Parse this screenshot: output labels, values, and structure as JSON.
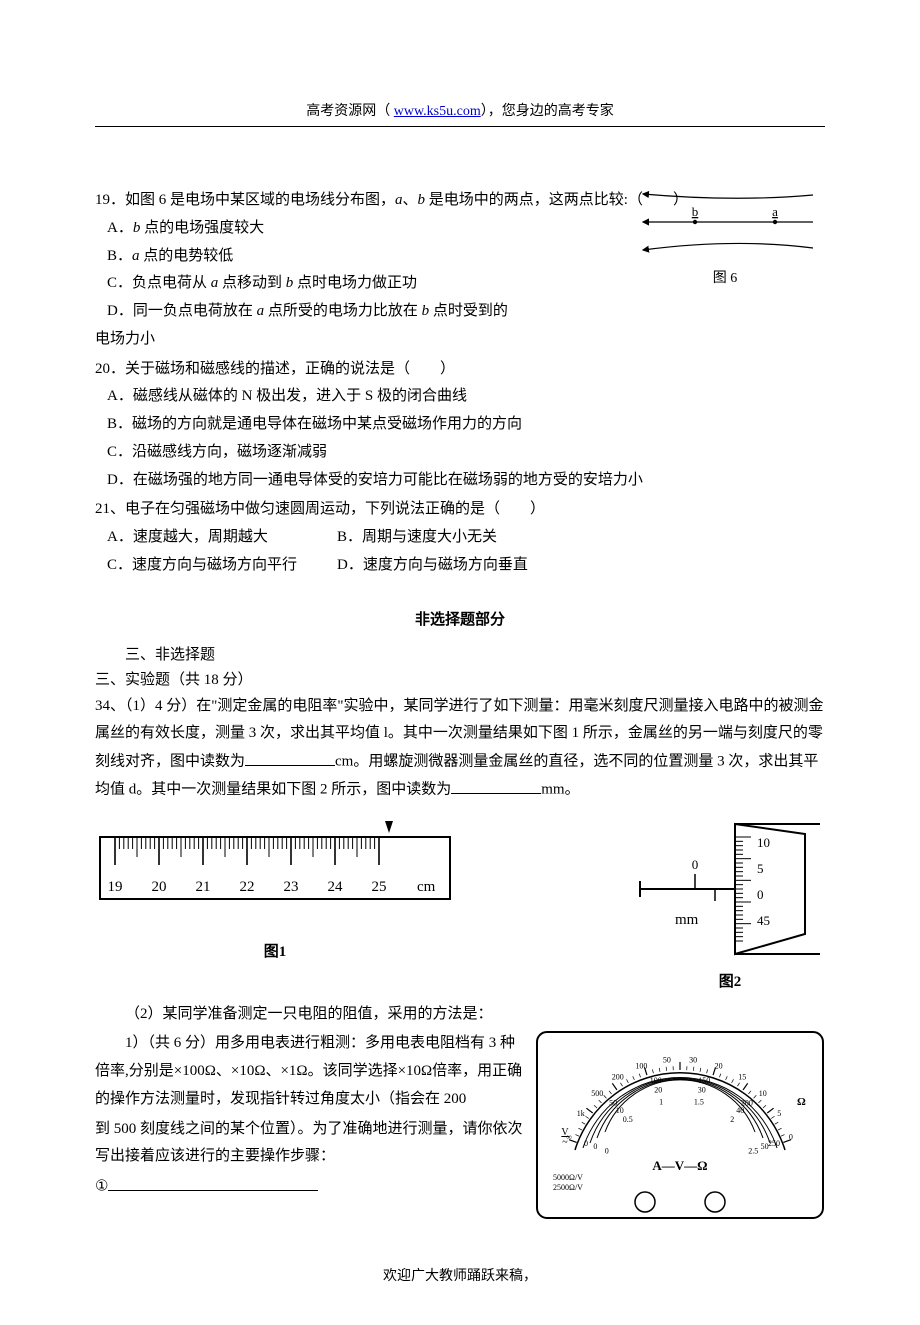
{
  "header": {
    "prefix": "高考资源网（ ",
    "link": "www.ks5u.com",
    "suffix": "），您身边的高考专家"
  },
  "q19": {
    "stem_a": "19．如图 6 是电场中某区域的电场线分布图，",
    "stem_b": "a",
    "stem_c": "、",
    "stem_d": "b",
    "stem_e": " 是电场中的两点，这两点比较:（　　）",
    "optA_pre": "A．",
    "optA_i": "b",
    "optA_post": " 点的电场强度较大",
    "optB_pre": "B．",
    "optB_i": "a",
    "optB_post": " 点的电势较低",
    "optC_pre": "C．负点电荷从 ",
    "optC_i1": "a",
    "optC_mid": " 点移动到 ",
    "optC_i2": "b",
    "optC_post": " 点时电场力做正功",
    "optD_pre": "D．同一负点电荷放在 ",
    "optD_i1": "a",
    "optD_mid": " 点所受的电场力比放在 ",
    "optD_i2": "b",
    "optD_post": " 点时受到的",
    "optD_line2": "电场力小",
    "fig_caption": "图 6",
    "fig_label_b": "b",
    "fig_label_a": "a"
  },
  "q20": {
    "stem": "20．关于磁场和磁感线的描述，正确的说法是（　　）",
    "A": "A．磁感线从磁体的 N 极出发，进入于 S 极的闭合曲线",
    "B": "B．磁场的方向就是通电导体在磁场中某点受磁场作用力的方向",
    "C": "C．沿磁感线方向，磁场逐渐减弱",
    "D": "D．在磁场强的地方同一通电导体受的安培力可能比在磁场弱的地方受的安培力小"
  },
  "q21": {
    "stem": "21、电子在匀强磁场中做匀速圆周运动，下列说法正确的是（　　）",
    "A": "A．速度越大，周期越大",
    "B": "B．周期与速度大小无关",
    "C": "C．速度方向与磁场方向平行",
    "D": "D．速度方向与磁场方向垂直"
  },
  "section2_title": "非选择题部分",
  "sec3_label": "三、非选择题",
  "sec3_exp": "三、实验题（共 18 分）",
  "q34": {
    "p1": "34、（1）4 分）在\"测定金属的电阻率\"实验中，某同学进行了如下测量：用毫米刻度尺测量接入电路中的被测金属丝的有效长度，测量 3 次，求出其平均值 l。其中一次测量结果如下图 1 所示，金属丝的另一端与刻度尺的零刻线对齐，图中读数为",
    "p1_unit": "cm。用螺旋测微器测量金属丝的直径，选不同的位置测量 3 次，求出其平均值 d。其中一次测量结果如下图 2 所示，图中读数为",
    "p1_unit2": "mm。",
    "fig1_caption": "图1",
    "fig2_caption": "图2",
    "p2_intro": "（2）某同学准备测定一只电阻的阻值，采用的方法是：",
    "p2_body_a": "1）（共 6 分）用多用电表进行粗测：多用电表电阻档有 3 种倍率,分别是×100Ω、×10Ω、×1Ω。该同学选择×10Ω倍率，用正确的操作方法测量时，发现指针转过角度太小（指会在 200",
    "p2_body_b": "到 500 刻度线之间的某个位置）。为了准确地进行测量，请你依次写出接着应该进行的主要操作步骤：",
    "step1_label": "①"
  },
  "ruler": {
    "ticks": [
      "19",
      "20",
      "21",
      "22",
      "23",
      "24",
      "25"
    ],
    "unit": "cm"
  },
  "micrometer": {
    "main_unit": "mm",
    "thimble": [
      "10",
      "5",
      "0",
      "45"
    ],
    "sleeve_tick": "0"
  },
  "meter": {
    "title": "A—V—Ω",
    "ohm_scale": [
      "∞",
      "1k",
      "500",
      "200",
      "100",
      "50",
      "30",
      "20",
      "15",
      "10",
      "5",
      "0"
    ],
    "dc_scale_top": [
      "0",
      "50",
      "100",
      "150",
      "200",
      "250"
    ],
    "dc_scale_bot": [
      "0",
      "10",
      "20",
      "30",
      "40",
      "50"
    ],
    "ac_scale": [
      "0",
      "0.5",
      "1",
      "1.5",
      "2",
      "2.5"
    ],
    "left_unit": "Ω",
    "left_labels": [
      "5000Ω/V",
      "2500Ω/V"
    ],
    "left_scale_v": "V",
    "right_unit": "Ω"
  },
  "footer": "欢迎广大教师踊跃来稿，"
}
